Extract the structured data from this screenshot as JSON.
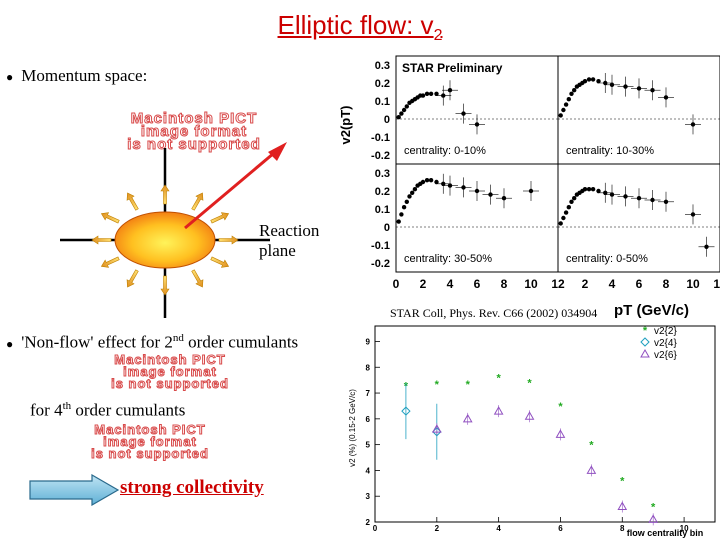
{
  "slide": {
    "title_main": "Elliptic flow: v",
    "title_sub": "2",
    "bullet1": "Momentum space:",
    "bullet2_pre": "'Non-flow' effect for 2",
    "bullet2_sup": "nd",
    "bullet2_post": " order cumulants",
    "line3_pre": "for 4",
    "line3_sup": "th",
    "line3_post": " order cumulants",
    "reaction_plane_line1": "Reaction",
    "reaction_plane_line2": "plane",
    "strong_collectivity": "strong collectivity",
    "reference": "STAR Coll, Phys. Rev. C66 (2002) 034904",
    "pict_placeholder_1": "Macintosh PICT",
    "pict_placeholder_2": "image format",
    "pict_placeholder_3": "is not supported",
    "accent_color": "#cc0000"
  },
  "chart_data": [
    {
      "type": "scatter",
      "title": "STAR Preliminary",
      "ylabel": "v2(pT)",
      "xlabel": "pT (GeV/c)",
      "yticks": [
        "0.3",
        "0.2",
        "0.1",
        "0",
        "-0.1",
        "-0.2"
      ],
      "xticks": [
        "0",
        "2",
        "4",
        "6",
        "8",
        "10",
        "12"
      ],
      "xlim": [
        0,
        12
      ],
      "ylim": [
        -0.25,
        0.35
      ],
      "panels": [
        {
          "label": "centrality: 0-10%",
          "x": [
            0.2,
            0.4,
            0.6,
            0.8,
            1.0,
            1.2,
            1.4,
            1.6,
            1.8,
            2.0,
            2.3,
            2.6,
            3.0,
            3.5,
            4.0,
            5.0,
            6.0
          ],
          "y": [
            0.01,
            0.03,
            0.05,
            0.07,
            0.09,
            0.1,
            0.11,
            0.12,
            0.13,
            0.13,
            0.14,
            0.14,
            0.14,
            0.13,
            0.16,
            0.03,
            -0.03
          ]
        },
        {
          "label": "centrality: 10-30%",
          "x": [
            0.2,
            0.4,
            0.6,
            0.8,
            1.0,
            1.2,
            1.4,
            1.6,
            1.8,
            2.0,
            2.3,
            2.6,
            3.0,
            3.5,
            4.0,
            5.0,
            6.0,
            7.0,
            8.0,
            10.0
          ],
          "y": [
            0.02,
            0.05,
            0.08,
            0.11,
            0.14,
            0.16,
            0.18,
            0.19,
            0.2,
            0.21,
            0.22,
            0.22,
            0.21,
            0.2,
            0.19,
            0.18,
            0.17,
            0.16,
            0.12,
            -0.03
          ]
        },
        {
          "label": "centrality: 30-50%",
          "x": [
            0.2,
            0.4,
            0.6,
            0.8,
            1.0,
            1.2,
            1.4,
            1.6,
            1.8,
            2.0,
            2.3,
            2.6,
            3.0,
            3.5,
            4.0,
            5.0,
            6.0,
            7.0,
            8.0,
            10.0
          ],
          "y": [
            0.03,
            0.07,
            0.11,
            0.14,
            0.17,
            0.19,
            0.21,
            0.23,
            0.24,
            0.25,
            0.26,
            0.26,
            0.25,
            0.24,
            0.23,
            0.22,
            0.2,
            0.18,
            0.16,
            0.2
          ]
        },
        {
          "label": "centrality: 0-50%",
          "x": [
            0.2,
            0.4,
            0.6,
            0.8,
            1.0,
            1.2,
            1.4,
            1.6,
            1.8,
            2.0,
            2.3,
            2.6,
            3.0,
            3.5,
            4.0,
            5.0,
            6.0,
            7.0,
            8.0,
            10.0,
            11.0
          ],
          "y": [
            0.02,
            0.05,
            0.08,
            0.11,
            0.14,
            0.16,
            0.18,
            0.19,
            0.2,
            0.21,
            0.21,
            0.21,
            0.2,
            0.19,
            0.18,
            0.17,
            0.16,
            0.15,
            0.14,
            0.07,
            -0.11
          ]
        }
      ]
    },
    {
      "type": "scatter",
      "ylabel": "v2 (%) (0.15-2 GeV/c)",
      "xlabel": "flow centrality bin",
      "xticks": [
        "0",
        "2",
        "4",
        "6",
        "8",
        "10"
      ],
      "yticks": [
        "9",
        "8",
        "7",
        "6",
        "5",
        "4",
        "3",
        "2"
      ],
      "xlim": [
        0,
        11
      ],
      "ylim": [
        2,
        9.6
      ],
      "series": [
        {
          "name": "v2{2}",
          "color": "#22aa22",
          "x": [
            1,
            2,
            3,
            4,
            5,
            6,
            7,
            8,
            9
          ],
          "y": [
            7.3,
            7.35,
            7.35,
            7.6,
            7.4,
            6.5,
            5.0,
            3.6,
            2.6
          ]
        },
        {
          "name": "v2{4}",
          "color": "#20a0c0",
          "x": [
            1,
            2
          ],
          "y": [
            6.3,
            5.5
          ]
        },
        {
          "name": "v2{6}",
          "color": "#9050c0",
          "x": [
            2,
            3,
            4,
            5,
            6,
            7,
            8,
            9
          ],
          "y": [
            5.6,
            6.0,
            6.3,
            6.1,
            5.4,
            4.0,
            2.6,
            2.1
          ]
        }
      ]
    }
  ]
}
